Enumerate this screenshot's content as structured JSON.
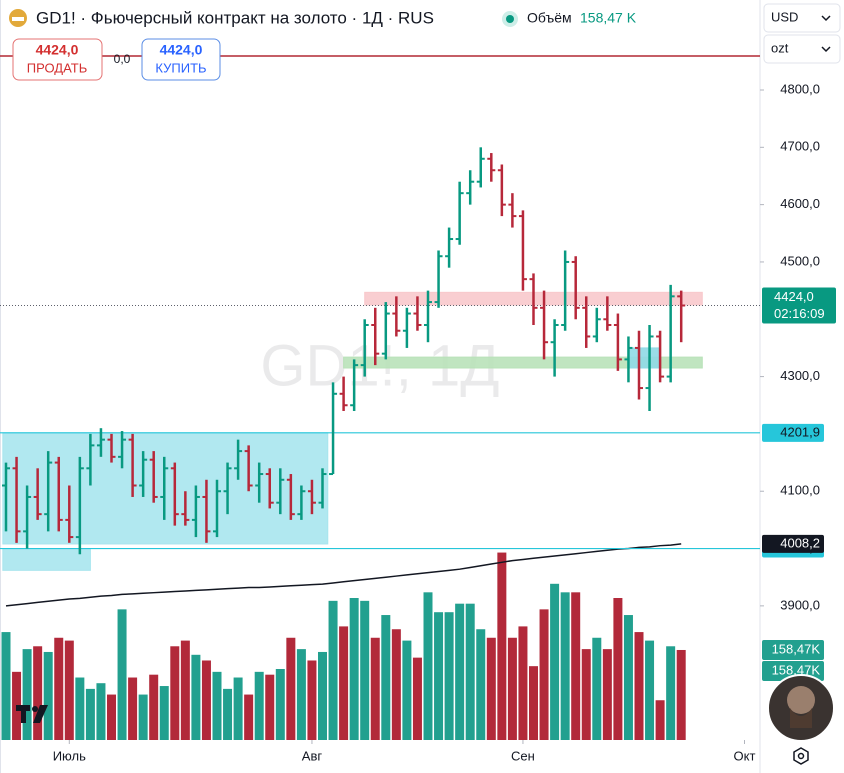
{
  "header": {
    "title": "GD1! · Фьючерсный контракт на золото · 1Д · RUS",
    "volume_title": "Объём",
    "volume_value": "158,47 K",
    "currency": "USD",
    "unit": "ozt"
  },
  "order_panel": {
    "sell_price": "4424,0",
    "sell_label": "ПРОДАТЬ",
    "spread": "0,0",
    "buy_price": "4424,0",
    "buy_label": "КУПИТЬ"
  },
  "chart_data": {
    "type": "ohlc",
    "watermark": "GD1!, 1Д",
    "up_color": "#089981",
    "down_color": "#b7283a",
    "ylim": [
      3666,
      4957
    ],
    "yticks": [
      {
        "value": 4800,
        "label": "4800,0"
      },
      {
        "value": 4700,
        "label": "4700,0"
      },
      {
        "value": 4600,
        "label": "4600,0"
      },
      {
        "value": 4500,
        "label": "4500,0"
      },
      {
        "value": 4300,
        "label": "4300,0"
      },
      {
        "value": 4100,
        "label": "4100,0"
      },
      {
        "value": 3900,
        "label": "3900,0"
      }
    ],
    "xticks": [
      {
        "value": 6,
        "label": "Июль"
      },
      {
        "value": 29,
        "label": "Авг"
      },
      {
        "value": 49,
        "label": "Сен"
      },
      {
        "value": 70,
        "label": "Окт"
      }
    ],
    "ohlc": [
      [
        4110,
        4150,
        4030,
        4140
      ],
      [
        4140,
        4160,
        4010,
        4030
      ],
      [
        4030,
        4110,
        4000,
        4090
      ],
      [
        4090,
        4140,
        4050,
        4060
      ],
      [
        4060,
        4170,
        4030,
        4150
      ],
      [
        4150,
        4160,
        4030,
        4050
      ],
      [
        4050,
        4110,
        4010,
        4020
      ],
      [
        4020,
        4160,
        3990,
        4140
      ],
      [
        4140,
        4200,
        4110,
        4180
      ],
      [
        4180,
        4210,
        4160,
        4190
      ],
      [
        4190,
        4200,
        4150,
        4160
      ],
      [
        4160,
        4205,
        4140,
        4190
      ],
      [
        4190,
        4200,
        4090,
        4110
      ],
      [
        4110,
        4170,
        4090,
        4155
      ],
      [
        4155,
        4170,
        4080,
        4090
      ],
      [
        4090,
        4160,
        4050,
        4140
      ],
      [
        4140,
        4150,
        4040,
        4060
      ],
      [
        4060,
        4100,
        4040,
        4050
      ],
      [
        4050,
        4110,
        4020,
        4090
      ],
      [
        4090,
        4120,
        4010,
        4030
      ],
      [
        4030,
        4120,
        4020,
        4100
      ],
      [
        4100,
        4150,
        4060,
        4140
      ],
      [
        4140,
        4190,
        4120,
        4170
      ],
      [
        4170,
        4180,
        4100,
        4110
      ],
      [
        4110,
        4150,
        4080,
        4130
      ],
      [
        4130,
        4140,
        4070,
        4080
      ],
      [
        4080,
        4140,
        4060,
        4120
      ],
      [
        4120,
        4130,
        4050,
        4060
      ],
      [
        4060,
        4110,
        4050,
        4100
      ],
      [
        4100,
        4120,
        4060,
        4080
      ],
      [
        4080,
        4140,
        4070,
        4130
      ],
      [
        4130,
        4290,
        4130,
        4270
      ],
      [
        4270,
        4300,
        4240,
        4250
      ],
      [
        4250,
        4330,
        4240,
        4320
      ],
      [
        4320,
        4400,
        4300,
        4390
      ],
      [
        4390,
        4420,
        4320,
        4340
      ],
      [
        4340,
        4430,
        4330,
        4410
      ],
      [
        4410,
        4440,
        4370,
        4380
      ],
      [
        4380,
        4420,
        4350,
        4410
      ],
      [
        4410,
        4440,
        4380,
        4390
      ],
      [
        4390,
        4450,
        4360,
        4430
      ],
      [
        4430,
        4520,
        4420,
        4510
      ],
      [
        4510,
        4560,
        4490,
        4540
      ],
      [
        4540,
        4640,
        4530,
        4620
      ],
      [
        4620,
        4660,
        4600,
        4640
      ],
      [
        4640,
        4700,
        4630,
        4680
      ],
      [
        4680,
        4690,
        4640,
        4660
      ],
      [
        4660,
        4670,
        4580,
        4600
      ],
      [
        4600,
        4620,
        4560,
        4580
      ],
      [
        4580,
        4590,
        4450,
        4470
      ],
      [
        4470,
        4480,
        4390,
        4420
      ],
      [
        4420,
        4450,
        4330,
        4360
      ],
      [
        4360,
        4400,
        4300,
        4390
      ],
      [
        4390,
        4520,
        4380,
        4500
      ],
      [
        4500,
        4510,
        4400,
        4420
      ],
      [
        4420,
        4440,
        4350,
        4370
      ],
      [
        4370,
        4420,
        4360,
        4400
      ],
      [
        4400,
        4440,
        4380,
        4390
      ],
      [
        4390,
        4410,
        4310,
        4330
      ],
      [
        4330,
        4370,
        4290,
        4350
      ],
      [
        4350,
        4380,
        4260,
        4280
      ],
      [
        4280,
        4390,
        4240,
        4370
      ],
      [
        4370,
        4380,
        4290,
        4300
      ],
      [
        4300,
        4460,
        4290,
        4440
      ],
      [
        4440,
        4450,
        4360,
        4424
      ]
    ],
    "volume": [
      190,
      120,
      160,
      165,
      155,
      180,
      175,
      110,
      90,
      100,
      80,
      230,
      110,
      80,
      115,
      95,
      165,
      175,
      150,
      140,
      120,
      90,
      110,
      80,
      120,
      115,
      125,
      180,
      160,
      140,
      155,
      245,
      200,
      250,
      245,
      180,
      220,
      195,
      175,
      145,
      260,
      225,
      225,
      240,
      240,
      195,
      180,
      330,
      180,
      200,
      130,
      230,
      275,
      260,
      260,
      160,
      180,
      160,
      250,
      220,
      190,
      175,
      70,
      165,
      158.47
    ],
    "volume_label": "158,47K",
    "ma": [
      3900,
      3902,
      3904,
      3906,
      3908,
      3910,
      3912,
      3913,
      3915,
      3917,
      3918,
      3920,
      3921,
      3922,
      3923,
      3924,
      3925,
      3926,
      3927,
      3928,
      3929,
      3930,
      3931,
      3932,
      3932,
      3933,
      3934,
      3935,
      3936,
      3937,
      3938,
      3940,
      3942,
      3944,
      3946,
      3948,
      3950,
      3952,
      3954,
      3956,
      3958,
      3960,
      3962,
      3964,
      3967,
      3970,
      3973,
      3976,
      3979,
      3981,
      3983,
      3985,
      3987,
      3989,
      3991,
      3993,
      3995,
      3997,
      3999,
      4000,
      4002,
      4003,
      4005,
      4006,
      4008.2
    ],
    "ma_label": "4008,2",
    "ma_color": "#131722",
    "last_price": {
      "value": 4424,
      "label": "4424,0",
      "countdown": "02:16:09"
    },
    "hlines": [
      {
        "value": 4201.9,
        "label": "4201,9",
        "color": "#26c6da"
      },
      {
        "value": 4000,
        "label": "4000,0",
        "color": "#26c6da"
      }
    ],
    "zones": [
      {
        "from": -0.3,
        "to": 30.5,
        "low": 4008,
        "high": 4201.9,
        "color": "#a8e5ee"
      },
      {
        "from": -0.3,
        "to": 8,
        "low": 3962,
        "high": 4000,
        "color": "#a8e5ee"
      },
      {
        "from": 34,
        "to": 66,
        "low": 4425,
        "high": 4447,
        "color": "#f8c9cc"
      },
      {
        "from": 32,
        "to": 66,
        "low": 4315,
        "high": 4334,
        "color": "#b9e2b9"
      },
      {
        "from": 59,
        "to": 62,
        "low": 4315,
        "high": 4350,
        "color": "#8fd9e6"
      }
    ]
  }
}
